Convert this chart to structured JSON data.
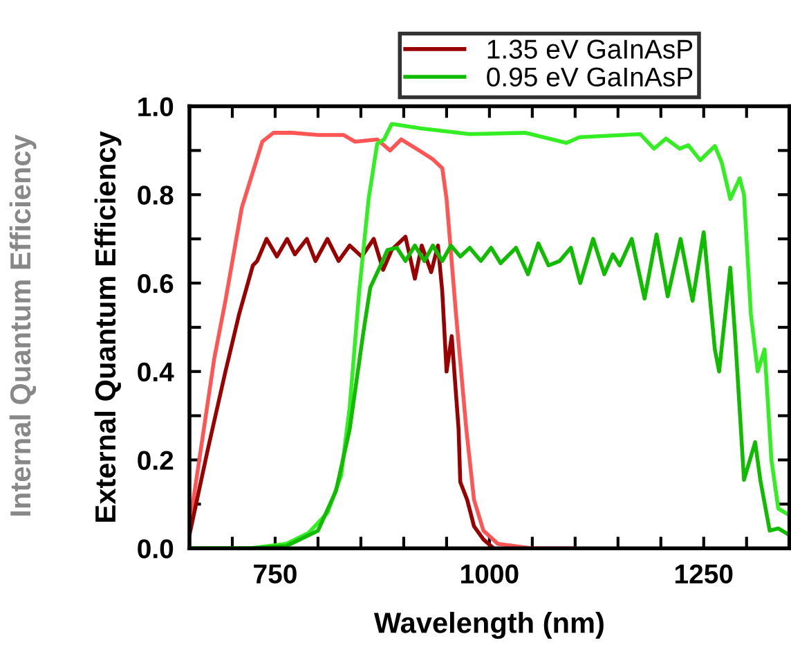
{
  "chart_data": {
    "type": "line",
    "xlabel": "Wavelength (nm)",
    "ylabel": "External Quantum Efficiency",
    "annotations": [
      "Internal Quantum Efficiency"
    ],
    "xlim": [
      650,
      1350
    ],
    "ylim": [
      0,
      1.0
    ],
    "xticks": [
      {
        "value": 700,
        "label": null
      },
      {
        "value": 750,
        "label": "750"
      },
      {
        "value": 800,
        "label": null
      },
      {
        "value": 850,
        "label": null
      },
      {
        "value": 900,
        "label": null
      },
      {
        "value": 950,
        "label": null
      },
      {
        "value": 1000,
        "label": "1000"
      },
      {
        "value": 1050,
        "label": null
      },
      {
        "value": 1100,
        "label": null
      },
      {
        "value": 1150,
        "label": null
      },
      {
        "value": 1200,
        "label": null
      },
      {
        "value": 1250,
        "label": "1250"
      },
      {
        "value": 1300,
        "label": null
      }
    ],
    "yticks": [
      {
        "value": 0,
        "label": "0.0"
      },
      {
        "value": 0.1,
        "label": null
      },
      {
        "value": 0.2,
        "label": "0.2"
      },
      {
        "value": 0.3,
        "label": null
      },
      {
        "value": 0.4,
        "label": "0.4"
      },
      {
        "value": 0.5,
        "label": null
      },
      {
        "value": 0.6,
        "label": "0.6"
      },
      {
        "value": 0.7,
        "label": null
      },
      {
        "value": 0.8,
        "label": "0.8"
      },
      {
        "value": 0.9,
        "label": null
      },
      {
        "value": 1.0,
        "label": "1.0"
      }
    ],
    "grid": false,
    "legend": "top",
    "marker": "none",
    "line_style": "solid",
    "series": [
      {
        "color": "#ff5555",
        "x": [
          650,
          679,
          692,
          711,
          735,
          748,
          770,
          800,
          830,
          843,
          869,
          884,
          897,
          918,
          934,
          945,
          950,
          961,
          973,
          982,
          993,
          1010,
          1050,
          1100
        ],
        "values": [
          0.05,
          0.43,
          0.56,
          0.77,
          0.92,
          0.94,
          0.94,
          0.935,
          0.935,
          0.92,
          0.925,
          0.9,
          0.925,
          0.9,
          0.88,
          0.86,
          0.79,
          0.53,
          0.27,
          0.11,
          0.04,
          0.01,
          0.0,
          0.0
        ]
      },
      {
        "name": "1.35 eV GaInAsP",
        "color": "#990000",
        "x": [
          650,
          671,
          692,
          708,
          724,
          729,
          740,
          752,
          764,
          773,
          787,
          797,
          811,
          824,
          837,
          851,
          865,
          876,
          886,
          902,
          913,
          921,
          932,
          940,
          945,
          950,
          956,
          964,
          966,
          974,
          982,
          993,
          1005
        ],
        "values": [
          0.03,
          0.22,
          0.4,
          0.53,
          0.64,
          0.65,
          0.7,
          0.66,
          0.7,
          0.665,
          0.7,
          0.65,
          0.7,
          0.65,
          0.685,
          0.66,
          0.7,
          0.63,
          0.675,
          0.705,
          0.61,
          0.685,
          0.625,
          0.685,
          0.58,
          0.4,
          0.48,
          0.27,
          0.15,
          0.11,
          0.05,
          0.02,
          0.0
        ]
      },
      {
        "color": "#33ee22",
        "x": [
          650,
          720,
          763,
          789,
          811,
          827,
          837,
          848,
          859,
          869,
          877,
          886,
          920,
          977,
          1042,
          1090,
          1105,
          1176,
          1192,
          1206,
          1222,
          1232,
          1246,
          1263,
          1271,
          1281,
          1292,
          1297,
          1305,
          1313,
          1321,
          1329,
          1337,
          1350
        ],
        "values": [
          0.0,
          0.0,
          0.01,
          0.035,
          0.08,
          0.165,
          0.32,
          0.58,
          0.79,
          0.915,
          0.925,
          0.96,
          0.95,
          0.937,
          0.94,
          0.917,
          0.93,
          0.937,
          0.904,
          0.927,
          0.904,
          0.912,
          0.878,
          0.91,
          0.873,
          0.79,
          0.837,
          0.8,
          0.53,
          0.4,
          0.45,
          0.2,
          0.09,
          0.075
        ]
      },
      {
        "name": "0.95 eV GaInAsP",
        "color": "#11bb00",
        "x": [
          650,
          720,
          763,
          800,
          821,
          837,
          853,
          861,
          873,
          881,
          892,
          902,
          913,
          924,
          934,
          945,
          955,
          966,
          977,
          990,
          1002,
          1013,
          1031,
          1045,
          1057,
          1069,
          1082,
          1095,
          1106,
          1121,
          1134,
          1144,
          1152,
          1166,
          1181,
          1195,
          1208,
          1223,
          1237,
          1250,
          1263,
          1268,
          1281,
          1287,
          1297,
          1310,
          1316,
          1327,
          1337,
          1350
        ],
        "values": [
          0.0,
          0.0,
          0.005,
          0.04,
          0.13,
          0.27,
          0.49,
          0.59,
          0.64,
          0.675,
          0.68,
          0.65,
          0.685,
          0.65,
          0.685,
          0.65,
          0.685,
          0.66,
          0.68,
          0.65,
          0.68,
          0.645,
          0.68,
          0.62,
          0.69,
          0.64,
          0.65,
          0.68,
          0.6,
          0.7,
          0.62,
          0.665,
          0.64,
          0.7,
          0.565,
          0.71,
          0.57,
          0.7,
          0.56,
          0.715,
          0.45,
          0.4,
          0.635,
          0.47,
          0.155,
          0.24,
          0.155,
          0.04,
          0.045,
          0.03
        ]
      }
    ]
  }
}
